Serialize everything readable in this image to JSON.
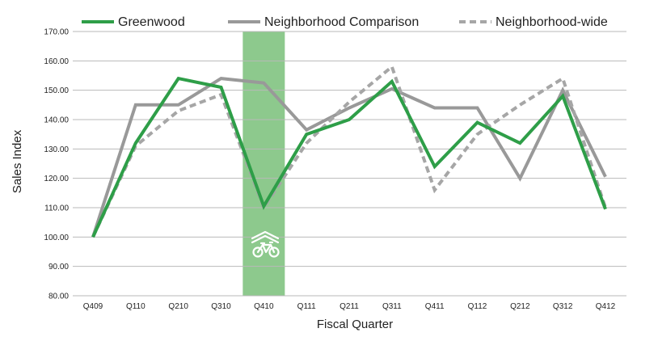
{
  "chart_data": {
    "type": "line",
    "xlabel": "Fiscal Quarter",
    "ylabel": "Sales Index",
    "ylim": [
      80,
      170
    ],
    "ytick_step": 10,
    "ytick_labels": [
      "80.00",
      "90.00",
      "100.00",
      "110.00",
      "120.00",
      "130.00",
      "140.00",
      "150.00",
      "160.00",
      "170.00"
    ],
    "grid": true,
    "legend_position": "top",
    "categories": [
      "Q409",
      "Q110",
      "Q210",
      "Q310",
      "Q410",
      "Q111",
      "Q211",
      "Q311",
      "Q411",
      "Q112",
      "Q212",
      "Q312",
      "Q412"
    ],
    "highlight": {
      "category": "Q410",
      "color": "#8dc98d",
      "icon": "bike-lane-icon"
    },
    "series": [
      {
        "name": "Greenwood",
        "color": "#2e9e48",
        "style": "solid",
        "values": [
          100,
          132,
          154,
          151,
          110.5,
          135,
          140,
          153,
          124,
          139,
          132,
          148,
          109.5
        ]
      },
      {
        "name": "Neighborhood Comparison",
        "color": "#999999",
        "style": "solid",
        "values": [
          100,
          145,
          145,
          154,
          152.5,
          136.5,
          144,
          150.5,
          144,
          144,
          120,
          150,
          120.5
        ]
      },
      {
        "name": "Neighborhood-wide",
        "color": "#a6a6a6",
        "style": "dashed",
        "values": [
          100,
          131,
          143,
          148.5,
          110,
          132,
          146,
          158,
          116,
          135,
          145,
          154,
          110
        ]
      }
    ]
  }
}
